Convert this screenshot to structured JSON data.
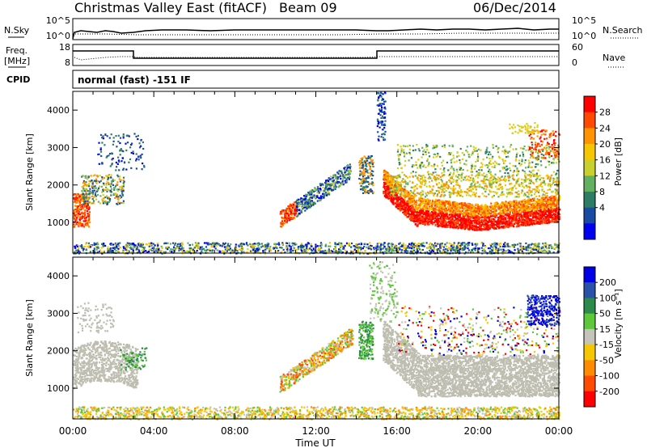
{
  "header": {
    "station": "Christmas Valley East (fitACF)",
    "beam": "Beam 09",
    "date": "06/Dec/2014"
  },
  "status_panels": {
    "nsky_label": "N.Sky",
    "nsky_ticks": [
      "10^5",
      "10^0"
    ],
    "nsearch_label": "N.Search",
    "nsearch_ticks": [
      "10^5",
      "10^0"
    ],
    "freq_label": "Freq.",
    "freq_unit": "[MHz]",
    "freq_ticks": [
      "18",
      "8"
    ],
    "nave_label": "Nave",
    "nave_ticks": [
      "60",
      "0"
    ],
    "cpid_label": "CPID",
    "cpid_text": "normal (fast) -151 IF"
  },
  "chart_data": [
    {
      "type": "heatmap",
      "name": "power",
      "ylabel": "Slant Range [km]",
      "xlabel": "",
      "x_ticks": [
        "00:00",
        "04:00",
        "08:00",
        "12:00",
        "16:00",
        "20:00",
        "00:00"
      ],
      "x_range_hours": [
        0,
        24
      ],
      "y_ticks": [
        1000,
        2000,
        3000,
        4000
      ],
      "ylim": [
        180,
        4500
      ],
      "colorbar": {
        "label": "Power [dB]",
        "ticks": [
          "28",
          "24",
          "20",
          "16",
          "12",
          "8",
          "4"
        ],
        "colors": [
          "#ff0000",
          "#ff4a00",
          "#ff9400",
          "#f6c600",
          "#c8d12d",
          "#62b060",
          "#2d7d66",
          "#1a4ba2",
          "#0000f0"
        ]
      }
    },
    {
      "type": "heatmap",
      "name": "velocity",
      "ylabel": "Slant Range [km]",
      "xlabel": "Time UT",
      "x_ticks": [
        "00:00",
        "04:00",
        "08:00",
        "12:00",
        "16:00",
        "20:00",
        "00:00"
      ],
      "x_range_hours": [
        0,
        24
      ],
      "y_ticks": [
        1000,
        2000,
        3000,
        4000
      ],
      "ylim": [
        180,
        4500
      ],
      "colorbar": {
        "label": "Velocity [m s⁻¹]",
        "ticks": [
          "200",
          "100",
          "50",
          "15",
          "-15",
          "-50",
          "-100",
          "-200"
        ],
        "colors": [
          "#0000e6",
          "#2a52a8",
          "#2c8a4a",
          "#5ec83a",
          "#c4c4b8",
          "#f6c600",
          "#ff8c00",
          "#ff4a00",
          "#ff0000"
        ]
      },
      "ground_scatter_color": "#bdbdb0"
    }
  ]
}
